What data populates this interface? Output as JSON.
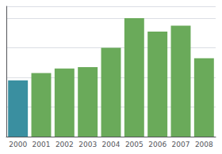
{
  "chart_data": {
    "type": "bar",
    "categories": [
      "2000",
      "2001",
      "2002",
      "2003",
      "2004",
      "2005",
      "2006",
      "2007",
      "2008"
    ],
    "values": [
      38,
      43,
      46,
      47,
      60,
      80,
      71,
      75,
      53
    ],
    "colors": [
      "#3a8fa0",
      "#6aaa5a",
      "#6aaa5a",
      "#6aaa5a",
      "#6aaa5a",
      "#6aaa5a",
      "#6aaa5a",
      "#6aaa5a",
      "#6aaa5a"
    ],
    "ylim": [
      0,
      88
    ],
    "yticks": [
      0,
      20,
      40,
      60,
      80
    ],
    "grid": true,
    "tick_labels": "x"
  }
}
